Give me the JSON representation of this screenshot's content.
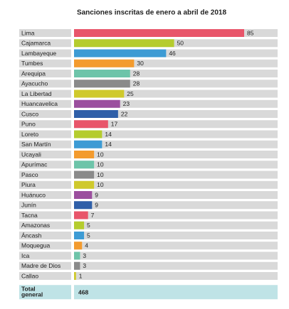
{
  "chart_data": {
    "type": "bar",
    "orientation": "horizontal",
    "title": "Sanciones inscritas de enero a abril de 2018",
    "categories": [
      "Lima",
      "Cajamarca",
      "Lambayeque",
      "Tumbes",
      "Arequipa",
      "Ayacucho",
      "La Libertad",
      "Huancavelica",
      "Cusco",
      "Puno",
      "Loreto",
      "San Martín",
      "Ucayali",
      "Apurímac",
      "Pasco",
      "Piura",
      "Huánuco",
      "Junín",
      "Tacna",
      "Amazonas",
      "Áncash",
      "Moquegua",
      "Ica",
      "Madre de Dios",
      "Callao"
    ],
    "values": [
      85,
      50,
      46,
      30,
      28,
      28,
      25,
      23,
      22,
      17,
      14,
      14,
      10,
      10,
      10,
      10,
      9,
      9,
      7,
      5,
      5,
      4,
      3,
      3,
      1
    ],
    "colors": [
      "#e8556a",
      "#b5cc2e",
      "#3d9bd4",
      "#f39b2e",
      "#6dc4a9",
      "#8a8a8a",
      "#cfc92c",
      "#9b4f9e",
      "#2f5fa8"
    ],
    "total": {
      "label": "Total general",
      "value": 468
    }
  }
}
